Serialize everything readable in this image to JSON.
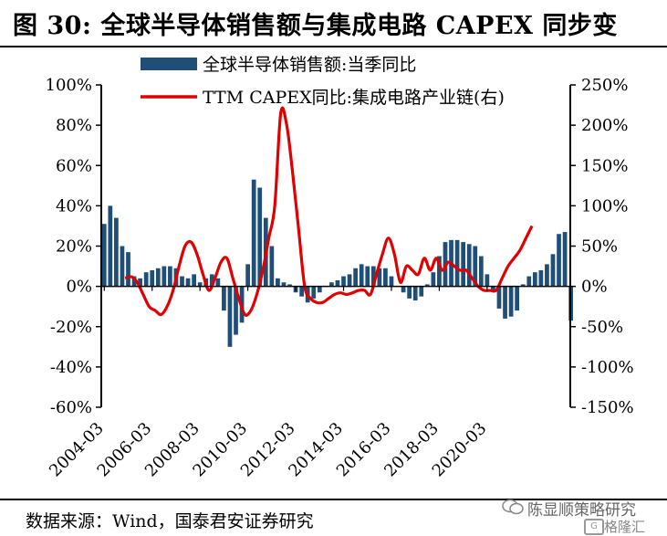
{
  "title": "图 30: 全球半导体销售额与集成电路 CAPEX 同步变",
  "source": "数据来源：Wind，国泰君安证券研究",
  "watermark": {
    "account": "陈显顺策略研究",
    "logo_text": "格隆汇",
    "logo_icon": "chat-bubble-icon"
  },
  "chart_data": {
    "type": "bar",
    "series": [
      {
        "name": "全球半导体销售额:当季同比",
        "type": "bar",
        "axis": "left",
        "color": "#1f4e79",
        "start_quarter": "2004-03",
        "values": [
          31,
          40,
          34,
          20,
          17,
          5,
          4,
          7,
          8,
          9,
          10,
          10,
          9,
          5,
          4,
          6,
          2,
          4,
          6,
          4,
          -12,
          -30,
          -24,
          -18,
          11,
          53,
          49,
          34,
          20,
          4,
          2,
          1,
          -3,
          -5,
          -8,
          -6,
          -3,
          0,
          2,
          3,
          5,
          6,
          9,
          11,
          10,
          10,
          9,
          9,
          5,
          0,
          -3,
          -6,
          -7,
          -5,
          1,
          7,
          15,
          22,
          23,
          23,
          22,
          21,
          20,
          15,
          6,
          -2,
          -11,
          -16,
          -15,
          -12,
          1,
          5,
          7,
          8,
          11,
          16,
          26,
          27,
          -17
        ]
      },
      {
        "name": "TTM CAPEX同比:集成电路产业链(右)",
        "type": "line",
        "axis": "right",
        "color": "#e00000",
        "x": [
          2005.25,
          2005.5,
          2005.75,
          2006.0,
          2006.25,
          2006.5,
          2006.75,
          2007.0,
          2007.25,
          2007.5,
          2007.75,
          2008.0,
          2008.25,
          2008.5,
          2008.75,
          2009.0,
          2009.25,
          2009.5,
          2009.75,
          2010.0,
          2010.25,
          2010.5,
          2010.75,
          2011.0,
          2011.25,
          2011.5,
          2011.75,
          2012.0,
          2012.25,
          2012.5,
          2012.75,
          2013.0,
          2013.25,
          2013.5,
          2013.75,
          2014.0,
          2014.25,
          2014.5,
          2014.75,
          2015.0,
          2015.25,
          2015.5,
          2015.75,
          2016.0,
          2016.25,
          2016.5,
          2016.75,
          2017.0,
          2017.25,
          2017.5,
          2017.75,
          2018.0,
          2018.25,
          2018.5,
          2018.75,
          2019.0,
          2019.25,
          2019.5,
          2019.75,
          2020.0,
          2020.25,
          2020.5,
          2020.75,
          2021.0,
          2021.25,
          2021.5,
          2021.75,
          2022.0,
          2022.25
        ],
        "values": [
          10,
          12,
          5,
          -10,
          -25,
          -30,
          -35,
          -25,
          -5,
          25,
          50,
          55,
          40,
          15,
          -5,
          10,
          30,
          35,
          10,
          -15,
          -35,
          -30,
          -10,
          20,
          60,
          100,
          215,
          200,
          140,
          70,
          0,
          -15,
          -20,
          -20,
          -15,
          -10,
          -8,
          -10,
          -8,
          -5,
          -5,
          -10,
          15,
          40,
          60,
          40,
          5,
          25,
          20,
          15,
          35,
          20,
          35,
          20,
          30,
          25,
          20,
          20,
          10,
          0,
          -5,
          -5,
          -5,
          10,
          25,
          35,
          45,
          60,
          75
        ]
      }
    ],
    "axes": {
      "x": {
        "ticks": [
          "2004-03",
          "2006-03",
          "2008-03",
          "2010-03",
          "2012-03",
          "2014-03",
          "2016-03",
          "2018-03",
          "2020-03"
        ],
        "range": [
          "2004-03",
          "2022-03"
        ]
      },
      "y_left": {
        "ticks": [
          "-60%",
          "-40%",
          "-20%",
          "0%",
          "20%",
          "40%",
          "60%",
          "80%",
          "100%"
        ],
        "range": [
          -60,
          100
        ]
      },
      "y_right": {
        "ticks": [
          "-150%",
          "-100%",
          "-50%",
          "0%",
          "50%",
          "100%",
          "150%",
          "200%",
          "250%"
        ],
        "range": [
          -150,
          250
        ]
      }
    },
    "grid": false,
    "legend": "top"
  }
}
